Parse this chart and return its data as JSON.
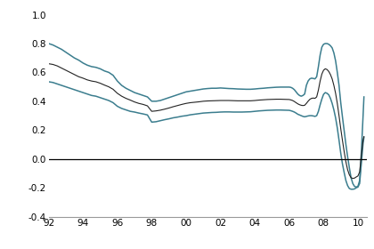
{
  "xlim": [
    1992,
    2010.5
  ],
  "ylim": [
    -0.4,
    1.05
  ],
  "yticks": [
    -0.4,
    -0.2,
    0.0,
    0.2,
    0.4,
    0.6,
    0.8,
    1.0
  ],
  "xtick_vals": [
    1992,
    1994,
    1996,
    1998,
    2000,
    2002,
    2004,
    2006,
    2008,
    2010
  ],
  "xtick_labels": [
    "92",
    "94",
    "96",
    "98",
    "00",
    "02",
    "04",
    "06",
    "08",
    "10"
  ],
  "line_color_outer": "#3b7d8e",
  "line_color_middle": "#222222",
  "background_color": "#ffffff",
  "upper_band": [
    [
      1992.0,
      0.8
    ],
    [
      1992.25,
      0.79
    ],
    [
      1992.5,
      0.775
    ],
    [
      1992.75,
      0.76
    ],
    [
      1993.0,
      0.74
    ],
    [
      1993.25,
      0.72
    ],
    [
      1993.5,
      0.7
    ],
    [
      1993.75,
      0.685
    ],
    [
      1994.0,
      0.665
    ],
    [
      1994.25,
      0.65
    ],
    [
      1994.5,
      0.64
    ],
    [
      1994.75,
      0.635
    ],
    [
      1995.0,
      0.625
    ],
    [
      1995.25,
      0.61
    ],
    [
      1995.5,
      0.6
    ],
    [
      1995.75,
      0.58
    ],
    [
      1996.0,
      0.54
    ],
    [
      1996.25,
      0.51
    ],
    [
      1996.5,
      0.49
    ],
    [
      1996.75,
      0.475
    ],
    [
      1997.0,
      0.46
    ],
    [
      1997.25,
      0.45
    ],
    [
      1997.5,
      0.44
    ],
    [
      1997.75,
      0.43
    ],
    [
      1998.0,
      0.4
    ],
    [
      1998.25,
      0.4
    ],
    [
      1998.5,
      0.405
    ],
    [
      1998.75,
      0.415
    ],
    [
      1999.0,
      0.425
    ],
    [
      1999.25,
      0.435
    ],
    [
      1999.5,
      0.445
    ],
    [
      1999.75,
      0.455
    ],
    [
      2000.0,
      0.465
    ],
    [
      2000.25,
      0.47
    ],
    [
      2000.5,
      0.475
    ],
    [
      2000.75,
      0.48
    ],
    [
      2001.0,
      0.485
    ],
    [
      2001.25,
      0.488
    ],
    [
      2001.5,
      0.49
    ],
    [
      2001.75,
      0.49
    ],
    [
      2002.0,
      0.492
    ],
    [
      2002.25,
      0.49
    ],
    [
      2002.5,
      0.488
    ],
    [
      2002.75,
      0.487
    ],
    [
      2003.0,
      0.485
    ],
    [
      2003.25,
      0.484
    ],
    [
      2003.5,
      0.483
    ],
    [
      2003.75,
      0.483
    ],
    [
      2004.0,
      0.485
    ],
    [
      2004.25,
      0.488
    ],
    [
      2004.5,
      0.49
    ],
    [
      2004.75,
      0.493
    ],
    [
      2005.0,
      0.495
    ],
    [
      2005.25,
      0.497
    ],
    [
      2005.5,
      0.498
    ],
    [
      2005.75,
      0.498
    ],
    [
      2006.0,
      0.498
    ],
    [
      2006.1,
      0.496
    ],
    [
      2006.2,
      0.49
    ],
    [
      2006.3,
      0.48
    ],
    [
      2006.4,
      0.465
    ],
    [
      2006.5,
      0.45
    ],
    [
      2006.6,
      0.44
    ],
    [
      2006.7,
      0.435
    ],
    [
      2006.8,
      0.44
    ],
    [
      2006.9,
      0.45
    ],
    [
      2007.0,
      0.51
    ],
    [
      2007.1,
      0.54
    ],
    [
      2007.2,
      0.555
    ],
    [
      2007.3,
      0.56
    ],
    [
      2007.4,
      0.558
    ],
    [
      2007.5,
      0.555
    ],
    [
      2007.6,
      0.57
    ],
    [
      2007.7,
      0.64
    ],
    [
      2007.8,
      0.72
    ],
    [
      2007.9,
      0.775
    ],
    [
      2008.0,
      0.795
    ],
    [
      2008.1,
      0.8
    ],
    [
      2008.2,
      0.8
    ],
    [
      2008.3,
      0.795
    ],
    [
      2008.4,
      0.785
    ],
    [
      2008.5,
      0.77
    ],
    [
      2008.6,
      0.735
    ],
    [
      2008.7,
      0.68
    ],
    [
      2008.8,
      0.6
    ],
    [
      2008.9,
      0.51
    ],
    [
      2009.0,
      0.39
    ],
    [
      2009.1,
      0.29
    ],
    [
      2009.2,
      0.195
    ],
    [
      2009.3,
      0.1
    ],
    [
      2009.4,
      0.015
    ],
    [
      2009.5,
      -0.06
    ],
    [
      2009.6,
      -0.13
    ],
    [
      2009.7,
      -0.17
    ],
    [
      2009.8,
      -0.19
    ],
    [
      2009.9,
      -0.195
    ],
    [
      2010.0,
      -0.19
    ],
    [
      2010.1,
      -0.15
    ],
    [
      2010.2,
      0.05
    ],
    [
      2010.3,
      0.3
    ],
    [
      2010.35,
      0.43
    ]
  ],
  "lower_band": [
    [
      1992.0,
      0.535
    ],
    [
      1992.25,
      0.53
    ],
    [
      1992.5,
      0.52
    ],
    [
      1992.75,
      0.51
    ],
    [
      1993.0,
      0.5
    ],
    [
      1993.25,
      0.49
    ],
    [
      1993.5,
      0.48
    ],
    [
      1993.75,
      0.47
    ],
    [
      1994.0,
      0.46
    ],
    [
      1994.25,
      0.45
    ],
    [
      1994.5,
      0.44
    ],
    [
      1994.75,
      0.435
    ],
    [
      1995.0,
      0.425
    ],
    [
      1995.25,
      0.415
    ],
    [
      1995.5,
      0.405
    ],
    [
      1995.75,
      0.39
    ],
    [
      1996.0,
      0.365
    ],
    [
      1996.25,
      0.35
    ],
    [
      1996.5,
      0.34
    ],
    [
      1996.75,
      0.33
    ],
    [
      1997.0,
      0.325
    ],
    [
      1997.25,
      0.318
    ],
    [
      1997.5,
      0.312
    ],
    [
      1997.75,
      0.305
    ],
    [
      1998.0,
      0.255
    ],
    [
      1998.25,
      0.258
    ],
    [
      1998.5,
      0.265
    ],
    [
      1998.75,
      0.272
    ],
    [
      1999.0,
      0.278
    ],
    [
      1999.25,
      0.285
    ],
    [
      1999.5,
      0.29
    ],
    [
      1999.75,
      0.296
    ],
    [
      2000.0,
      0.3
    ],
    [
      2000.25,
      0.306
    ],
    [
      2000.5,
      0.31
    ],
    [
      2000.75,
      0.314
    ],
    [
      2001.0,
      0.318
    ],
    [
      2001.25,
      0.32
    ],
    [
      2001.5,
      0.322
    ],
    [
      2001.75,
      0.323
    ],
    [
      2002.0,
      0.325
    ],
    [
      2002.25,
      0.326
    ],
    [
      2002.5,
      0.326
    ],
    [
      2002.75,
      0.325
    ],
    [
      2003.0,
      0.325
    ],
    [
      2003.25,
      0.325
    ],
    [
      2003.5,
      0.326
    ],
    [
      2003.75,
      0.327
    ],
    [
      2004.0,
      0.33
    ],
    [
      2004.25,
      0.333
    ],
    [
      2004.5,
      0.335
    ],
    [
      2004.75,
      0.337
    ],
    [
      2005.0,
      0.338
    ],
    [
      2005.25,
      0.339
    ],
    [
      2005.5,
      0.339
    ],
    [
      2005.75,
      0.338
    ],
    [
      2006.0,
      0.337
    ],
    [
      2006.1,
      0.334
    ],
    [
      2006.2,
      0.33
    ],
    [
      2006.3,
      0.325
    ],
    [
      2006.4,
      0.318
    ],
    [
      2006.5,
      0.31
    ],
    [
      2006.6,
      0.305
    ],
    [
      2006.7,
      0.3
    ],
    [
      2006.8,
      0.295
    ],
    [
      2006.9,
      0.292
    ],
    [
      2007.0,
      0.295
    ],
    [
      2007.1,
      0.298
    ],
    [
      2007.2,
      0.3
    ],
    [
      2007.3,
      0.3
    ],
    [
      2007.4,
      0.298
    ],
    [
      2007.5,
      0.295
    ],
    [
      2007.6,
      0.3
    ],
    [
      2007.7,
      0.33
    ],
    [
      2007.8,
      0.375
    ],
    [
      2007.9,
      0.415
    ],
    [
      2008.0,
      0.448
    ],
    [
      2008.1,
      0.46
    ],
    [
      2008.2,
      0.455
    ],
    [
      2008.3,
      0.445
    ],
    [
      2008.4,
      0.42
    ],
    [
      2008.5,
      0.385
    ],
    [
      2008.6,
      0.34
    ],
    [
      2008.7,
      0.285
    ],
    [
      2008.8,
      0.215
    ],
    [
      2008.9,
      0.13
    ],
    [
      2009.0,
      0.04
    ],
    [
      2009.1,
      -0.035
    ],
    [
      2009.2,
      -0.095
    ],
    [
      2009.3,
      -0.15
    ],
    [
      2009.4,
      -0.185
    ],
    [
      2009.5,
      -0.205
    ],
    [
      2009.6,
      -0.21
    ],
    [
      2009.7,
      -0.21
    ],
    [
      2009.8,
      -0.208
    ],
    [
      2009.9,
      -0.2
    ],
    [
      2010.0,
      -0.195
    ],
    [
      2010.1,
      -0.17
    ],
    [
      2010.2,
      -0.03
    ],
    [
      2010.3,
      0.11
    ],
    [
      2010.35,
      0.15
    ]
  ],
  "middle_line": [
    [
      1992.0,
      0.66
    ],
    [
      1992.25,
      0.655
    ],
    [
      1992.5,
      0.645
    ],
    [
      1992.75,
      0.63
    ],
    [
      1993.0,
      0.615
    ],
    [
      1993.25,
      0.6
    ],
    [
      1993.5,
      0.585
    ],
    [
      1993.75,
      0.57
    ],
    [
      1994.0,
      0.56
    ],
    [
      1994.25,
      0.548
    ],
    [
      1994.5,
      0.54
    ],
    [
      1994.75,
      0.535
    ],
    [
      1995.0,
      0.525
    ],
    [
      1995.25,
      0.512
    ],
    [
      1995.5,
      0.5
    ],
    [
      1995.75,
      0.483
    ],
    [
      1996.0,
      0.455
    ],
    [
      1996.25,
      0.435
    ],
    [
      1996.5,
      0.42
    ],
    [
      1996.75,
      0.408
    ],
    [
      1997.0,
      0.395
    ],
    [
      1997.25,
      0.385
    ],
    [
      1997.5,
      0.378
    ],
    [
      1997.75,
      0.368
    ],
    [
      1998.0,
      0.33
    ],
    [
      1998.25,
      0.333
    ],
    [
      1998.5,
      0.338
    ],
    [
      1998.75,
      0.345
    ],
    [
      1999.0,
      0.353
    ],
    [
      1999.25,
      0.362
    ],
    [
      1999.5,
      0.37
    ],
    [
      1999.75,
      0.378
    ],
    [
      2000.0,
      0.385
    ],
    [
      2000.25,
      0.39
    ],
    [
      2000.5,
      0.393
    ],
    [
      2000.75,
      0.396
    ],
    [
      2001.0,
      0.4
    ],
    [
      2001.25,
      0.402
    ],
    [
      2001.5,
      0.403
    ],
    [
      2001.75,
      0.404
    ],
    [
      2002.0,
      0.405
    ],
    [
      2002.25,
      0.405
    ],
    [
      2002.5,
      0.405
    ],
    [
      2002.75,
      0.404
    ],
    [
      2003.0,
      0.403
    ],
    [
      2003.25,
      0.403
    ],
    [
      2003.5,
      0.403
    ],
    [
      2003.75,
      0.403
    ],
    [
      2004.0,
      0.405
    ],
    [
      2004.25,
      0.408
    ],
    [
      2004.5,
      0.41
    ],
    [
      2004.75,
      0.412
    ],
    [
      2005.0,
      0.413
    ],
    [
      2005.25,
      0.414
    ],
    [
      2005.5,
      0.414
    ],
    [
      2005.75,
      0.413
    ],
    [
      2006.0,
      0.412
    ],
    [
      2006.1,
      0.409
    ],
    [
      2006.2,
      0.405
    ],
    [
      2006.3,
      0.398
    ],
    [
      2006.4,
      0.39
    ],
    [
      2006.5,
      0.382
    ],
    [
      2006.6,
      0.376
    ],
    [
      2006.7,
      0.372
    ],
    [
      2006.8,
      0.37
    ],
    [
      2006.9,
      0.372
    ],
    [
      2007.0,
      0.385
    ],
    [
      2007.1,
      0.4
    ],
    [
      2007.2,
      0.413
    ],
    [
      2007.3,
      0.42
    ],
    [
      2007.4,
      0.422
    ],
    [
      2007.5,
      0.42
    ],
    [
      2007.6,
      0.43
    ],
    [
      2007.7,
      0.478
    ],
    [
      2007.8,
      0.54
    ],
    [
      2007.9,
      0.588
    ],
    [
      2008.0,
      0.615
    ],
    [
      2008.1,
      0.625
    ],
    [
      2008.2,
      0.62
    ],
    [
      2008.3,
      0.607
    ],
    [
      2008.4,
      0.585
    ],
    [
      2008.5,
      0.555
    ],
    [
      2008.6,
      0.51
    ],
    [
      2008.7,
      0.455
    ],
    [
      2008.8,
      0.385
    ],
    [
      2008.9,
      0.3
    ],
    [
      2009.0,
      0.21
    ],
    [
      2009.1,
      0.128
    ],
    [
      2009.2,
      0.05
    ],
    [
      2009.3,
      -0.02
    ],
    [
      2009.4,
      -0.075
    ],
    [
      2009.5,
      -0.11
    ],
    [
      2009.6,
      -0.13
    ],
    [
      2009.7,
      -0.135
    ],
    [
      2009.8,
      -0.133
    ],
    [
      2009.9,
      -0.125
    ],
    [
      2010.0,
      -0.118
    ],
    [
      2010.1,
      -0.09
    ],
    [
      2010.2,
      0.025
    ],
    [
      2010.3,
      0.13
    ],
    [
      2010.35,
      0.155
    ]
  ]
}
